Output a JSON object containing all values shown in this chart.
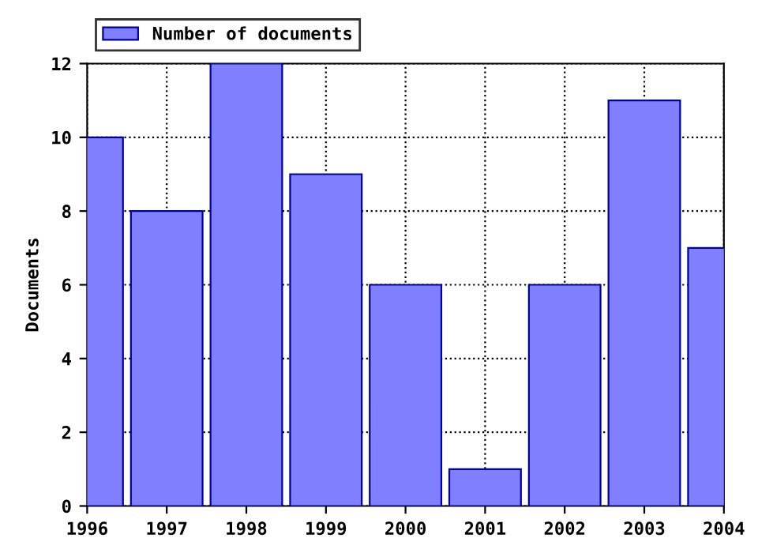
{
  "chart_data": {
    "type": "bar",
    "ylabel": "Documents",
    "x": [
      1996,
      1997,
      1998,
      1999,
      2000,
      2001,
      2002,
      2003,
      2004
    ],
    "series": [
      {
        "name": "Number of documents",
        "color": "#8080ff",
        "values": [
          10,
          8,
          12,
          9,
          6,
          1,
          6,
          11,
          7
        ]
      }
    ],
    "xlim": [
      1996,
      2004
    ],
    "xticks": [
      1996,
      1997,
      1998,
      1999,
      2000,
      2001,
      2002,
      2003,
      2004
    ],
    "ylim": [
      0,
      12
    ],
    "yticks": [
      0,
      2,
      4,
      6,
      8,
      10,
      12
    ],
    "grid": true,
    "legend": "top left"
  }
}
